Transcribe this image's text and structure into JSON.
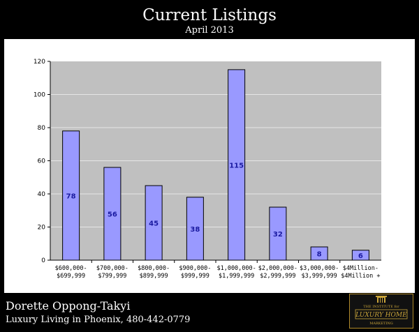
{
  "header": {
    "title": "Current Listings",
    "subtitle": "April 2013"
  },
  "footer": {
    "name": "Dorette Oppong-Takyi",
    "tagline": "Luxury Living in Phoenix, 480-442-0779",
    "logo": {
      "line1": "THE INSTITUTE for",
      "line2": "LUXURY HOME",
      "line3": "MARKETING"
    }
  },
  "colors": {
    "background": "#000000",
    "plot_area": "#c0c0c0",
    "bar_fill": "#9999ff",
    "bar_stroke": "#000000",
    "value_label": "#1a1aa0",
    "logo_gold": "#c9a43a"
  },
  "chart_data": {
    "type": "bar",
    "title": "",
    "xlabel": "",
    "ylabel": "",
    "ylim": [
      0,
      120
    ],
    "yticks": [
      0,
      20,
      40,
      60,
      80,
      100,
      120
    ],
    "grid": true,
    "legend": "none",
    "categories": [
      [
        "$600,000-",
        "$699,999"
      ],
      [
        "$700,000-",
        "$799,999"
      ],
      [
        "$800,000-",
        "$899,999"
      ],
      [
        "$900,000-",
        "$999,999"
      ],
      [
        "$1,000,000-",
        "$1,999,999"
      ],
      [
        "$2,000,000-",
        "$2,999,999"
      ],
      [
        "$3,000,000-",
        "$3,999,999"
      ],
      [
        "$4Million-",
        "$4Million +"
      ]
    ],
    "values": [
      78,
      56,
      45,
      38,
      115,
      32,
      8,
      6
    ]
  }
}
